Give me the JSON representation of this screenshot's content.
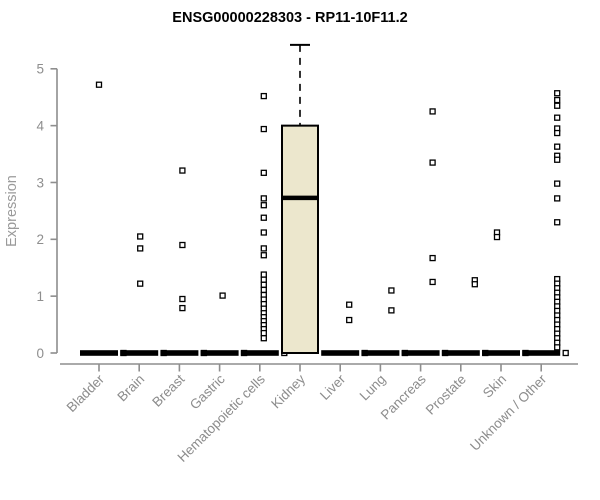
{
  "window": {
    "background": "#ffffff"
  },
  "chart_data": {
    "type": "boxplot",
    "title": "ENSG00000228303 - RP11-10F11.2",
    "xlabel": "",
    "ylabel": "Expression",
    "ylim": [
      0,
      5.5
    ],
    "yticks": [
      0,
      1,
      2,
      3,
      4,
      5
    ],
    "grid": false,
    "legend": "none",
    "marker_shape": "open-square",
    "colors": {
      "box_fill": "#ece7cd",
      "box_stroke": "#000000",
      "collapsed_bar": "#000000",
      "point_stroke": "#000000",
      "point_fill": "#ffffff",
      "axis_line": "#8e8e8e",
      "tick_text": "#8e8e8e",
      "title_text": "#000000",
      "background": "#ffffff"
    },
    "groups": [
      {
        "label": "Bladder",
        "collapsed_at_zero": true,
        "zero_point": true,
        "dx": 0,
        "outliers": [
          4.72
        ]
      },
      {
        "label": "Brain",
        "collapsed_at_zero": true,
        "zero_point": true,
        "dx": 1,
        "outliers": [
          2.05,
          1.84,
          1.22
        ]
      },
      {
        "label": "Breast",
        "collapsed_at_zero": true,
        "zero_point": true,
        "dx": 3,
        "outliers": [
          3.21,
          1.9,
          0.95,
          0.79
        ]
      },
      {
        "label": "Gastric",
        "collapsed_at_zero": true,
        "zero_point": true,
        "dx": 3,
        "outliers": [
          1.01
        ]
      },
      {
        "label": "Hematopoietic cells",
        "collapsed_at_zero": true,
        "zero_point": true,
        "dx": 4,
        "outliers": [
          4.52,
          3.94,
          3.17,
          2.72,
          2.6,
          2.38,
          2.12,
          1.84,
          1.72,
          1.38,
          1.29,
          1.2,
          1.11,
          1.02,
          0.94,
          0.86,
          0.78,
          0.7,
          0.63,
          0.56,
          0.49,
          0.42,
          0.35,
          0.26
        ]
      },
      {
        "label": "Kidney",
        "collapsed_at_zero": false,
        "zero_point": false,
        "dx": 0,
        "outliers": [],
        "box": {
          "whisker_low": 0,
          "q1": 0,
          "median": 2.73,
          "q3": 4.0,
          "whisker_high": 5.42
        }
      },
      {
        "label": "Liver",
        "collapsed_at_zero": true,
        "zero_point": true,
        "dx": 9,
        "outliers": [
          0.85,
          0.58
        ]
      },
      {
        "label": "Lung",
        "collapsed_at_zero": true,
        "zero_point": true,
        "dx": 11,
        "outliers": [
          1.1,
          0.75
        ]
      },
      {
        "label": "Pancreas",
        "collapsed_at_zero": true,
        "zero_point": true,
        "dx": 12,
        "outliers": [
          4.25,
          3.35,
          1.67,
          1.25
        ]
      },
      {
        "label": "Prostate",
        "collapsed_at_zero": true,
        "zero_point": true,
        "dx": 14,
        "outliers": [
          1.28,
          1.21
        ]
      },
      {
        "label": "Skin",
        "collapsed_at_zero": true,
        "zero_point": true,
        "dx": -4,
        "outliers": [
          2.12,
          2.04
        ]
      },
      {
        "label": "Unknown / Other",
        "collapsed_at_zero": true,
        "zero_point": true,
        "dx": 16,
        "outliers": [
          4.57,
          4.45,
          4.35,
          4.14,
          3.95,
          3.87,
          3.63,
          3.47,
          3.4,
          2.98,
          2.72,
          2.3,
          1.3,
          1.22,
          1.14,
          1.06,
          0.98,
          0.9,
          0.82,
          0.74,
          0.66,
          0.58,
          0.5,
          0.42,
          0.34,
          0.26,
          0.18,
          0.1
        ]
      }
    ]
  }
}
